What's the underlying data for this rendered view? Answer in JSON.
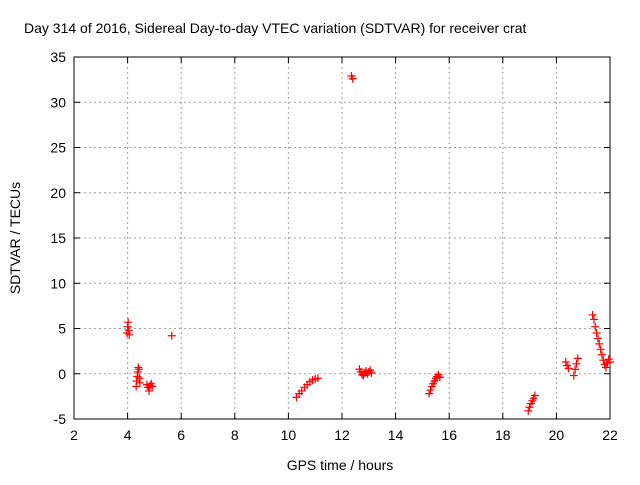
{
  "chart_data": {
    "type": "scatter",
    "title": "Day 314 of 2016, Sidereal Day-to-day VTEC variation (SDTVAR) for receiver crat",
    "xlabel": "GPS time / hours",
    "ylabel": "SDTVAR / TECUs",
    "xlim": [
      2,
      22
    ],
    "ylim": [
      -5,
      35
    ],
    "xticks": [
      "2",
      "4",
      "6",
      "8",
      "10",
      "12",
      "14",
      "16",
      "18",
      "20",
      "22"
    ],
    "yticks": [
      "-5",
      "0",
      "5",
      "10",
      "15",
      "20",
      "25",
      "30",
      "35"
    ],
    "grid": true,
    "marker": "plus",
    "series": [
      {
        "name": "SDTVAR",
        "color": "#ff0000",
        "x": [
          3.98,
          4.0,
          4.02,
          4.04,
          4.06,
          4.32,
          4.34,
          4.36,
          4.38,
          4.4,
          4.42,
          4.44,
          4.46,
          4.72,
          4.76,
          4.8,
          4.84,
          4.88,
          4.92,
          5.65,
          10.3,
          10.4,
          10.5,
          10.6,
          10.7,
          10.8,
          10.9,
          11.0,
          11.1,
          12.35,
          12.4,
          12.65,
          12.7,
          12.75,
          12.8,
          12.85,
          12.9,
          12.95,
          13.0,
          13.05,
          13.1,
          15.25,
          15.3,
          15.35,
          15.4,
          15.45,
          15.5,
          15.55,
          15.6,
          15.65,
          18.95,
          19.0,
          19.05,
          19.1,
          19.15,
          19.2,
          20.35,
          20.4,
          20.45,
          20.65,
          20.7,
          20.75,
          20.8,
          21.35,
          21.4,
          21.45,
          21.5,
          21.55,
          21.6,
          21.65,
          21.7,
          21.75,
          21.8,
          21.85,
          21.9,
          21.95,
          22.0
        ],
        "y": [
          4.5,
          5.2,
          5.7,
          4.8,
          4.3,
          -1.4,
          -0.8,
          -0.3,
          0.2,
          0.7,
          0.5,
          -0.5,
          -1.0,
          -1.2,
          -1.5,
          -1.9,
          -1.3,
          -1.1,
          -1.4,
          4.2,
          -2.6,
          -2.2,
          -1.9,
          -1.5,
          -1.2,
          -0.9,
          -0.7,
          -0.6,
          -0.5,
          32.9,
          32.6,
          0.5,
          0.2,
          -0.1,
          -0.2,
          0.1,
          0.3,
          0.0,
          0.2,
          0.4,
          0.1,
          -2.2,
          -1.8,
          -1.4,
          -1.1,
          -0.8,
          -0.5,
          -0.3,
          -0.1,
          -0.4,
          -4.1,
          -3.7,
          -3.3,
          -3.0,
          -2.7,
          -2.4,
          1.3,
          0.9,
          0.6,
          -0.2,
          0.5,
          1.1,
          1.7,
          6.5,
          6.0,
          5.2,
          4.5,
          3.9,
          3.3,
          2.7,
          2.1,
          1.5,
          1.0,
          0.7,
          1.2,
          1.6,
          1.3
        ]
      }
    ]
  }
}
